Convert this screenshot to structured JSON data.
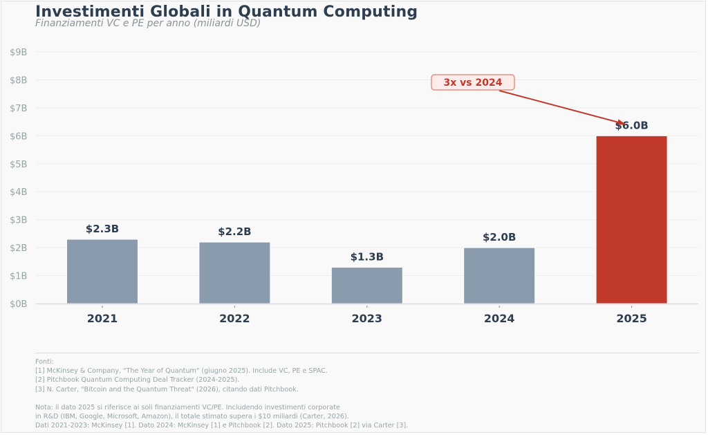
{
  "chart_data": {
    "type": "bar",
    "title": "Investimenti Globali in Quantum Computing",
    "subtitle": "Finanziamenti VC e PE per anno (miliardi USD)",
    "xlabel": "",
    "ylabel": "",
    "categories": [
      "2021",
      "2022",
      "2023",
      "2024",
      "2025"
    ],
    "values": [
      2.3,
      2.2,
      1.3,
      2.0,
      6.0
    ],
    "data_labels": [
      "$2.3B",
      "$2.2B",
      "$1.3B",
      "$2.0B",
      "$6.0B"
    ],
    "ylim": [
      0,
      9
    ],
    "yticks": [
      0,
      1,
      2,
      3,
      4,
      5,
      6,
      7,
      8,
      9
    ],
    "ytick_labels": [
      "$0B",
      "$1B",
      "$2B",
      "$3B",
      "$4B",
      "$5B",
      "$6B",
      "$7B",
      "$8B",
      "$9B"
    ],
    "grid": true,
    "colors": {
      "default_bar": "#8a9bae",
      "highlight_bar": "#c0392b",
      "text_dark": "#2c3e50",
      "text_muted": "#95a5a6"
    },
    "highlight_index": 4,
    "annotation": {
      "text": "3x vs 2024",
      "target_category": "2025",
      "target_value": 6.0
    }
  },
  "footer": {
    "sources_heading": "Fonti:",
    "sources": [
      "[1] McKinsey & Company, \"The Year of Quantum\" (giugno 2025). Include VC, PE e SPAC.",
      "[2] Pitchbook Quantum Computing Deal Tracker (2024-2025).",
      "[3] N. Carter, \"Bitcoin and the Quantum Threat\" (2026), citando dati Pitchbook."
    ],
    "note_lines": [
      "Nota: il dato 2025 si riferisce ai soli finanziamenti VC/PE. Includendo investimenti corporate",
      "in R&D (IBM, Google, Microsoft, Amazon), il totale stimato supera i $10 miliardi (Carter, 2026).",
      "Dati 2021-2023: McKinsey [1]. Dato 2024: McKinsey [1] e Pitchbook [2]. Dato 2025: Pitchbook [2] via Carter [3]."
    ]
  }
}
